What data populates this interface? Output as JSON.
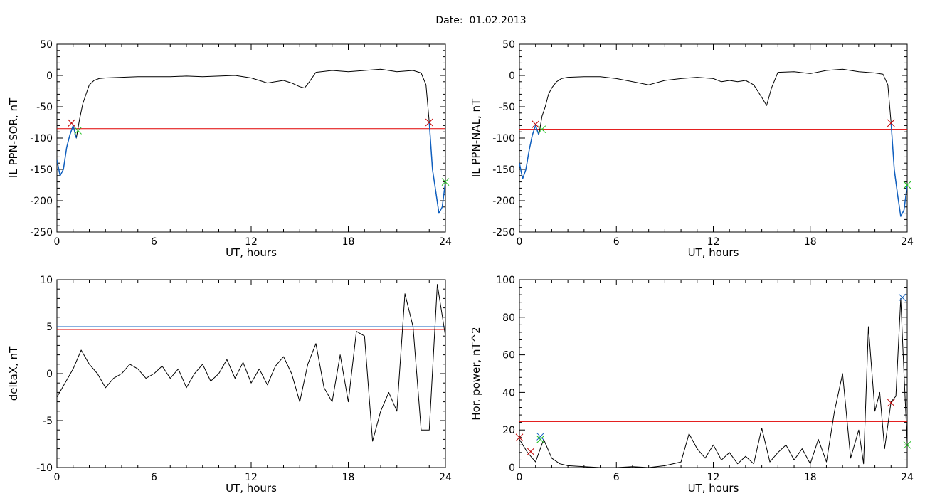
{
  "figure": {
    "title_prefix": "Date:",
    "date": "01.02.2013",
    "colors": {
      "trace": "#000000",
      "threshold_red": "#e00000",
      "threshold_blue": "#1060c0",
      "blue_segment": "#1060c0",
      "marker_red": "#c00000",
      "marker_green": "#20c020",
      "marker_blue": "#1060c0"
    }
  },
  "chart_data": [
    {
      "type": "line",
      "panel": "top-left",
      "xlabel": "UT, hours",
      "ylabel": "IL PPN-SOR, nT",
      "xlim": [
        0,
        24
      ],
      "ylim": [
        -250,
        50
      ],
      "xticks": [
        0,
        6,
        12,
        18,
        24
      ],
      "yticks": [
        -250,
        -200,
        -150,
        -100,
        -50,
        0,
        50
      ],
      "grid": false,
      "series": [
        {
          "color": "#000000",
          "x": [
            0,
            0.2,
            0.4,
            0.6,
            0.8,
            1.0,
            1.2,
            1.4,
            1.6,
            1.8,
            2.0,
            2.3,
            2.6,
            3,
            4,
            5,
            6,
            7,
            8,
            9,
            10,
            11,
            11.5,
            12,
            12.5,
            13,
            13.5,
            14,
            14.5,
            15,
            15.3,
            15.6,
            16,
            17,
            18,
            19,
            20,
            21,
            22,
            22.5,
            22.8,
            23.0,
            23.2,
            23.4,
            23.6,
            23.8,
            24
          ],
          "y": [
            -135,
            -160,
            -150,
            -115,
            -95,
            -80,
            -100,
            -70,
            -45,
            -30,
            -15,
            -8,
            -5,
            -4,
            -3,
            -2,
            -2,
            -2,
            -1,
            -2,
            -1,
            0,
            -2,
            -4,
            -8,
            -12,
            -10,
            -8,
            -12,
            -18,
            -20,
            -10,
            5,
            8,
            6,
            8,
            10,
            6,
            8,
            4,
            -15,
            -75,
            -150,
            -185,
            -220,
            -210,
            -170
          ]
        }
      ],
      "blue_segments": [
        {
          "x": [
            0,
            0.2,
            0.4,
            0.6,
            0.8,
            1.0,
            1.2
          ],
          "y": [
            -135,
            -160,
            -150,
            -115,
            -95,
            -80,
            -100
          ]
        },
        {
          "x": [
            23.0,
            23.2,
            23.4,
            23.6,
            23.8,
            24
          ],
          "y": [
            -75,
            -150,
            -185,
            -220,
            -210,
            -170
          ]
        }
      ],
      "hlines": [
        {
          "y": -85,
          "color": "#e00000"
        }
      ],
      "markers": [
        {
          "x": 0.9,
          "y": -76,
          "color": "#c00000"
        },
        {
          "x": 1.3,
          "y": -88,
          "color": "#20c020"
        },
        {
          "x": 23.0,
          "y": -75,
          "color": "#c00000"
        },
        {
          "x": 24,
          "y": -170,
          "color": "#20c020"
        }
      ]
    },
    {
      "type": "line",
      "panel": "top-right",
      "xlabel": "UT, hours",
      "ylabel": "IL PPN-NAL, nT",
      "xlim": [
        0,
        24
      ],
      "ylim": [
        -250,
        50
      ],
      "xticks": [
        0,
        6,
        12,
        18,
        24
      ],
      "yticks": [
        -250,
        -200,
        -150,
        -100,
        -50,
        0,
        50
      ],
      "grid": false,
      "series": [
        {
          "color": "#000000",
          "x": [
            0,
            0.2,
            0.4,
            0.6,
            0.8,
            1.0,
            1.2,
            1.4,
            1.6,
            1.8,
            2.0,
            2.3,
            2.6,
            3,
            4,
            5,
            6,
            7,
            8,
            9,
            10,
            11,
            12,
            12.5,
            13,
            13.5,
            14,
            14.5,
            15,
            15.3,
            15.6,
            16,
            17,
            18,
            19,
            20,
            21,
            22,
            22.5,
            22.8,
            23.0,
            23.2,
            23.4,
            23.6,
            23.8,
            24
          ],
          "y": [
            -140,
            -165,
            -150,
            -120,
            -95,
            -80,
            -95,
            -65,
            -50,
            -30,
            -20,
            -10,
            -5,
            -3,
            -2,
            -2,
            -5,
            -10,
            -15,
            -8,
            -5,
            -3,
            -5,
            -10,
            -8,
            -10,
            -8,
            -15,
            -35,
            -48,
            -20,
            5,
            6,
            3,
            8,
            10,
            6,
            4,
            2,
            -15,
            -75,
            -150,
            -190,
            -225,
            -215,
            -175
          ]
        }
      ],
      "blue_segments": [
        {
          "x": [
            0,
            0.2,
            0.4,
            0.6,
            0.8,
            1.0,
            1.2
          ],
          "y": [
            -140,
            -165,
            -150,
            -120,
            -95,
            -80,
            -95
          ]
        },
        {
          "x": [
            23.0,
            23.2,
            23.4,
            23.6,
            23.8,
            24
          ],
          "y": [
            -75,
            -150,
            -190,
            -225,
            -215,
            -175
          ]
        }
      ],
      "hlines": [
        {
          "y": -86,
          "color": "#e00000"
        }
      ],
      "markers": [
        {
          "x": 1.0,
          "y": -78,
          "color": "#c00000"
        },
        {
          "x": 1.4,
          "y": -86,
          "color": "#20c020"
        },
        {
          "x": 23.0,
          "y": -76,
          "color": "#c00000"
        },
        {
          "x": 24,
          "y": -175,
          "color": "#20c020"
        }
      ]
    },
    {
      "type": "line",
      "panel": "bottom-left",
      "xlabel": "UT, hours",
      "ylabel": "deltaX, nT",
      "xlim": [
        0,
        24
      ],
      "ylim": [
        -10,
        10
      ],
      "xticks": [
        0,
        6,
        12,
        18,
        24
      ],
      "yticks": [
        -10,
        -5,
        0,
        5,
        10
      ],
      "grid": false,
      "series": [
        {
          "color": "#000000",
          "x": [
            0,
            0.5,
            1.0,
            1.5,
            2.0,
            2.5,
            3.0,
            3.5,
            4.0,
            4.5,
            5.0,
            5.5,
            6.0,
            6.5,
            7.0,
            7.5,
            8.0,
            8.5,
            9.0,
            9.5,
            10.0,
            10.5,
            11.0,
            11.5,
            12.0,
            12.5,
            13.0,
            13.5,
            14.0,
            14.5,
            15.0,
            15.5,
            16.0,
            16.5,
            17.0,
            17.5,
            18.0,
            18.5,
            19.0,
            19.5,
            20.0,
            20.5,
            21.0,
            21.5,
            22.0,
            22.5,
            23.0,
            23.5,
            24.0
          ],
          "y": [
            -2.5,
            -1,
            0.5,
            2.5,
            1,
            0,
            -1.5,
            -0.5,
            0,
            1,
            0.5,
            -0.5,
            0,
            0.8,
            -0.5,
            0.5,
            -1.5,
            0,
            1,
            -0.8,
            0,
            1.5,
            -0.5,
            1.2,
            -1,
            0.5,
            -1.2,
            0.8,
            1.8,
            0,
            -3,
            1,
            3.2,
            -1.5,
            -3,
            2,
            -3,
            4.5,
            4,
            -7.2,
            -4,
            -2,
            -4,
            8.5,
            5,
            -6,
            -6,
            9.5,
            4
          ]
        }
      ],
      "blue_segments": [],
      "hlines": [
        {
          "y": 5.0,
          "color": "#1060c0"
        },
        {
          "y": 4.7,
          "color": "#e00000"
        }
      ],
      "markers": []
    },
    {
      "type": "line",
      "panel": "bottom-right",
      "xlabel": "UT, hours",
      "ylabel": "Hor. power, nT^2",
      "xlim": [
        0,
        24
      ],
      "ylim": [
        0,
        100
      ],
      "xticks": [
        0,
        6,
        12,
        18,
        24
      ],
      "yticks": [
        0,
        20,
        40,
        60,
        80,
        100
      ],
      "grid": false,
      "series": [
        {
          "color": "#000000",
          "x": [
            0,
            0.5,
            1.0,
            1.5,
            2.0,
            2.5,
            3.0,
            4.0,
            5.0,
            6.0,
            7.0,
            8.0,
            9.0,
            10.0,
            10.5,
            11.0,
            11.5,
            12.0,
            12.5,
            13.0,
            13.5,
            14.0,
            14.5,
            15.0,
            15.5,
            16.0,
            16.5,
            17.0,
            17.5,
            18.0,
            18.5,
            19.0,
            19.5,
            20.0,
            20.5,
            21.0,
            21.3,
            21.6,
            22.0,
            22.3,
            22.6,
            23.0,
            23.3,
            23.6,
            23.8,
            24.0
          ],
          "y": [
            15,
            8,
            3,
            15,
            5,
            2,
            1,
            0.5,
            0,
            0,
            0.5,
            0,
            1,
            3,
            18,
            10,
            5,
            12,
            4,
            8,
            2,
            6,
            2,
            21,
            3,
            8,
            12,
            4,
            10,
            2,
            15,
            3,
            30,
            50,
            5,
            20,
            2,
            75,
            30,
            40,
            10,
            35,
            38,
            90,
            50,
            13
          ]
        }
      ],
      "blue_segments": [],
      "hlines": [
        {
          "y": 24.5,
          "color": "#e00000"
        }
      ],
      "markers": [
        {
          "x": 0,
          "y": 16,
          "color": "#c00000"
        },
        {
          "x": 0.7,
          "y": 8.5,
          "color": "#c00000"
        },
        {
          "x": 1.3,
          "y": 16.5,
          "color": "#1060c0"
        },
        {
          "x": 1.3,
          "y": 15,
          "color": "#20c020"
        },
        {
          "x": 23.0,
          "y": 34.5,
          "color": "#c00000"
        },
        {
          "x": 23.7,
          "y": 90.5,
          "color": "#1060c0"
        },
        {
          "x": 24.0,
          "y": 12,
          "color": "#20c020"
        }
      ]
    }
  ]
}
